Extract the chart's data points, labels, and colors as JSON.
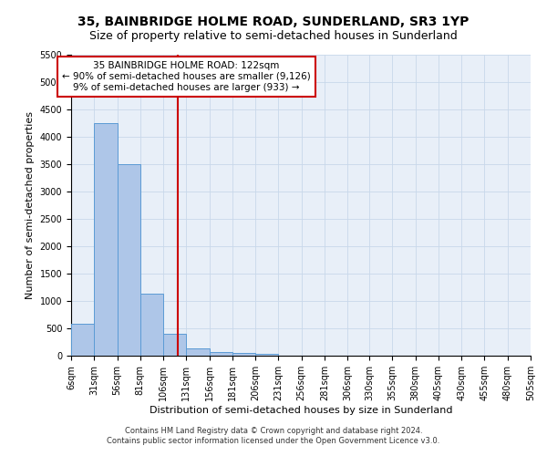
{
  "title": "35, BAINBRIDGE HOLME ROAD, SUNDERLAND, SR3 1YP",
  "subtitle": "Size of property relative to semi-detached houses in Sunderland",
  "xlabel": "Distribution of semi-detached houses by size in Sunderland",
  "ylabel": "Number of semi-detached properties",
  "footnote1": "Contains HM Land Registry data © Crown copyright and database right 2024.",
  "footnote2": "Contains public sector information licensed under the Open Government Licence v3.0.",
  "annotation_title": "35 BAINBRIDGE HOLME ROAD: 122sqm",
  "annotation_line1": "← 90% of semi-detached houses are smaller (9,126)",
  "annotation_line2": "9% of semi-detached houses are larger (933) →",
  "property_size_sqm": 122,
  "bin_edges": [
    6,
    31,
    56,
    81,
    106,
    131,
    156,
    181,
    206,
    231,
    256,
    281,
    306,
    330,
    355,
    380,
    405,
    430,
    455,
    480,
    505
  ],
  "bar_heights": [
    580,
    4250,
    3500,
    1130,
    400,
    140,
    65,
    50,
    35,
    0,
    0,
    0,
    0,
    0,
    0,
    0,
    0,
    0,
    0,
    0
  ],
  "bar_color": "#aec6e8",
  "bar_edge_color": "#5b9bd5",
  "vline_color": "#cc0000",
  "vline_x": 122,
  "annotation_box_edge_color": "#cc0000",
  "ylim": [
    0,
    5500
  ],
  "yticks": [
    0,
    500,
    1000,
    1500,
    2000,
    2500,
    3000,
    3500,
    4000,
    4500,
    5000,
    5500
  ],
  "grid_color": "#c8d8ea",
  "bg_color": "#e8eff8",
  "title_fontsize": 10,
  "subtitle_fontsize": 9,
  "axis_label_fontsize": 8,
  "tick_fontsize": 7,
  "annot_fontsize": 7.5
}
